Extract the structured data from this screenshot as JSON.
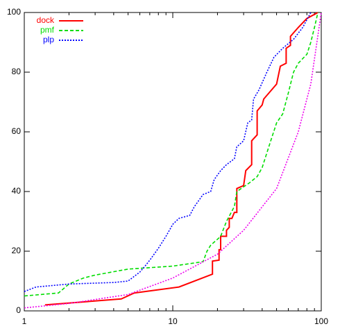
{
  "chart_data": {
    "type": "line",
    "log_x": true,
    "xlim": [
      1,
      100
    ],
    "xticks": [
      1,
      10,
      100
    ],
    "ylim": [
      0,
      100
    ],
    "yticks": [
      0,
      20,
      40,
      60,
      80,
      100
    ],
    "legend": "top-left",
    "series": [
      {
        "name": "dock",
        "color": "#ff0000",
        "dash": "solid",
        "x": [
          1.38,
          4.5,
          5.5,
          11,
          18.5,
          18.5,
          20.5,
          20.5,
          21,
          21,
          23,
          23,
          24,
          24,
          25,
          26,
          27,
          27,
          30,
          31,
          34,
          34,
          37,
          37,
          40,
          41,
          50,
          53,
          58,
          58,
          62,
          62,
          70,
          80,
          95
        ],
        "values": [
          2,
          4,
          6,
          8,
          12.3,
          16.7,
          17,
          20.5,
          20.5,
          25,
          25,
          27,
          28,
          31,
          31,
          33,
          33,
          41,
          42,
          47,
          49,
          57,
          59,
          67,
          69,
          71,
          76,
          82,
          83,
          88,
          89,
          92,
          95,
          98,
          100
        ]
      },
      {
        "name": "pmf",
        "color": "#00dd00",
        "dash": "dashed",
        "x": [
          1,
          1.7,
          2,
          2.5,
          3,
          5,
          10,
          16,
          17,
          18,
          20,
          21,
          23,
          26,
          27,
          33,
          37,
          40,
          45,
          50,
          55,
          60,
          65,
          70,
          80,
          85,
          90,
          95
        ],
        "values": [
          5,
          6,
          9,
          11,
          12,
          14,
          15,
          16.5,
          20,
          22,
          24,
          25,
          30,
          35,
          40,
          43,
          45,
          48,
          56,
          63,
          66,
          73,
          80,
          83,
          86,
          90,
          95,
          100
        ]
      },
      {
        "name": "plp",
        "color": "#0000ff",
        "dash": "dotted",
        "x": [
          1,
          1.2,
          2,
          4,
          5,
          6,
          6.5,
          7,
          8,
          9,
          10,
          11,
          13,
          14,
          16,
          18,
          19,
          21,
          23,
          26,
          27,
          30,
          32,
          34,
          35,
          38,
          43,
          48,
          55,
          65,
          75,
          85
        ],
        "values": [
          6.5,
          8,
          9,
          9.5,
          10,
          13,
          15,
          17,
          21,
          25,
          29,
          31,
          32,
          35,
          39,
          40,
          44,
          47,
          49,
          51,
          55,
          57,
          63,
          64,
          71,
          74,
          80,
          85,
          88,
          91,
          95,
          100
        ]
      },
      {
        "color": "#ee00ee",
        "dash": "dotted",
        "x": [
          1,
          2,
          5,
          10,
          20,
          30,
          50,
          70,
          85,
          100
        ],
        "values": [
          1,
          2.5,
          5.5,
          11,
          19,
          27,
          41,
          60,
          76,
          100
        ]
      }
    ]
  }
}
